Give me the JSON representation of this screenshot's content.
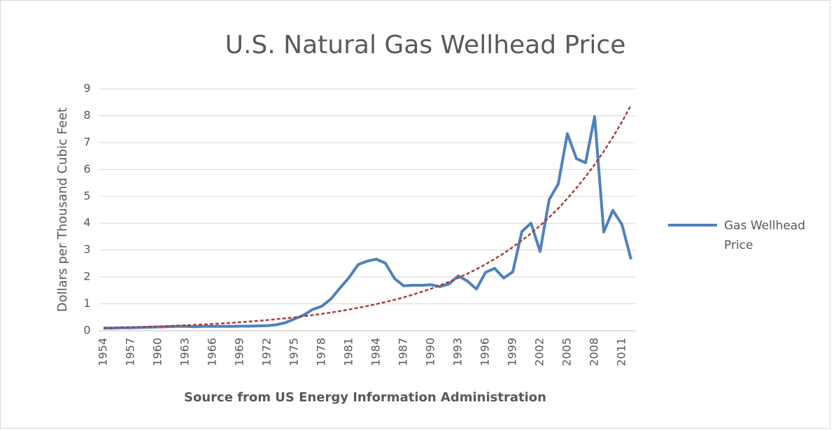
{
  "chart_data": {
    "type": "line",
    "title": "U.S. Natural Gas Wellhead Price",
    "y_label": "Dollars per Thousand Cubic Feet",
    "x_label": "Source from US Energy Information Administration",
    "categories": [
      "1954",
      null,
      null,
      "1957",
      null,
      null,
      "1960",
      null,
      null,
      "1963",
      null,
      null,
      "1966",
      null,
      null,
      "1969",
      null,
      null,
      "1972",
      null,
      null,
      "1975",
      null,
      null,
      "1978",
      null,
      null,
      "1981",
      null,
      null,
      "1984",
      null,
      null,
      "1987",
      null,
      null,
      "1990",
      null,
      null,
      "1993",
      null,
      null,
      "1996",
      null,
      null,
      "1999",
      null,
      null,
      "2002",
      null,
      null,
      "2005",
      null,
      null,
      "2008",
      null,
      null,
      "2011",
      null
    ],
    "series": [
      {
        "name": "Gas Wellhead Price",
        "color": "#4f81bd",
        "values": [
          0.1,
          0.1,
          0.11,
          0.11,
          0.12,
          0.13,
          0.14,
          0.15,
          0.16,
          0.16,
          0.15,
          0.16,
          0.16,
          0.16,
          0.16,
          0.17,
          0.17,
          0.18,
          0.19,
          0.22,
          0.3,
          0.44,
          0.58,
          0.79,
          0.91,
          1.18,
          1.59,
          1.98,
          2.46,
          2.59,
          2.66,
          2.51,
          1.94,
          1.67,
          1.69,
          1.69,
          1.71,
          1.64,
          1.74,
          2.04,
          1.85,
          1.55,
          2.17,
          2.32,
          1.96,
          2.19,
          3.69,
          4.0,
          2.95,
          4.88,
          5.46,
          7.33,
          6.4,
          6.25,
          7.97,
          3.67,
          4.48,
          3.95,
          2.66
        ]
      },
      {
        "color": "#a5403d",
        "dashed": true,
        "values": [
          0.1,
          0.108,
          0.117,
          0.126,
          0.136,
          0.147,
          0.158,
          0.171,
          0.185,
          0.199,
          0.215,
          0.232,
          0.251,
          0.27,
          0.292,
          0.315,
          0.34,
          0.367,
          0.396,
          0.428,
          0.462,
          0.498,
          0.538,
          0.58,
          0.626,
          0.676,
          0.73,
          0.788,
          0.85,
          0.918,
          0.99,
          1.07,
          1.15,
          1.24,
          1.34,
          1.45,
          1.56,
          1.69,
          1.82,
          1.97,
          2.12,
          2.29,
          2.47,
          2.67,
          2.88,
          3.11,
          3.36,
          3.62,
          3.91,
          4.22,
          4.55,
          4.92,
          5.31,
          5.73,
          6.18,
          6.67,
          7.2,
          7.77,
          8.39
        ]
      }
    ],
    "ylim": [
      0,
      9
    ],
    "yticks": [
      0,
      1,
      2,
      3,
      4,
      5,
      6,
      7,
      8,
      9
    ],
    "grid": true,
    "legend": "right"
  }
}
